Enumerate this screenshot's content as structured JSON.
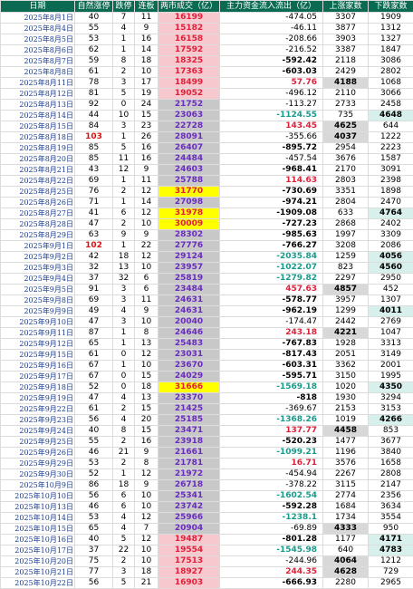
{
  "headers": [
    "日期",
    "自然涨停",
    "跌停",
    "连板",
    "两市成交（亿）",
    "主力资金流入流出（亿）",
    "上涨家数",
    "下跌家数"
  ],
  "rows": [
    [
      "2025年8月1日",
      "40",
      "7",
      "11",
      "16199",
      "-474.05",
      "3307",
      "1909"
    ],
    [
      "2025年8月4日",
      "55",
      "4",
      "9",
      "15182",
      "-46.11",
      "3877",
      "1312"
    ],
    [
      "2025年8月5日",
      "53",
      "1",
      "16",
      "16158",
      "-208.66",
      "3903",
      "1327"
    ],
    [
      "2025年8月6日",
      "62",
      "1",
      "14",
      "17592",
      "-216.52",
      "3387",
      "1847"
    ],
    [
      "2025年8月7日",
      "59",
      "8",
      "18",
      "18325",
      "-592.42",
      "2118",
      "3086"
    ],
    [
      "2025年8月8日",
      "61",
      "2",
      "10",
      "17363",
      "-603.03",
      "2429",
      "2802"
    ],
    [
      "2025年8月11日",
      "78",
      "3",
      "17",
      "18499",
      "57.76",
      "4188",
      "1068"
    ],
    [
      "2025年8月12日",
      "81",
      "5",
      "19",
      "19052",
      "-496.12",
      "2110",
      "3066"
    ],
    [
      "2025年8月13日",
      "92",
      "0",
      "24",
      "21752",
      "-113.27",
      "2733",
      "2458"
    ],
    [
      "2025年8月14日",
      "44",
      "10",
      "15",
      "23063",
      "-1124.55",
      "735",
      "4648"
    ],
    [
      "2025年8月15日",
      "84",
      "3",
      "23",
      "22728",
      "143.45",
      "4625",
      "644"
    ],
    [
      "2025年8月18日",
      "103",
      "1",
      "26",
      "28091",
      "-355.66",
      "4037",
      "1222"
    ],
    [
      "2025年8月19日",
      "85",
      "5",
      "16",
      "26407",
      "-895.72",
      "2954",
      "2223"
    ],
    [
      "2025年8月20日",
      "85",
      "11",
      "16",
      "24484",
      "-457.54",
      "3676",
      "1587"
    ],
    [
      "2025年8月21日",
      "43",
      "12",
      "9",
      "24603",
      "-968.41",
      "2170",
      "3091"
    ],
    [
      "2025年8月22日",
      "69",
      "1",
      "11",
      "25788",
      "114.63",
      "2803",
      "2398"
    ],
    [
      "2025年8月25日",
      "76",
      "2",
      "12",
      "31770",
      "-730.69",
      "3351",
      "1898"
    ],
    [
      "2025年8月26日",
      "71",
      "1",
      "14",
      "27098",
      "-974.21",
      "2804",
      "2470"
    ],
    [
      "2025年8月27日",
      "41",
      "6",
      "12",
      "31978",
      "-1909.08",
      "633",
      "4764"
    ],
    [
      "2025年8月28日",
      "47",
      "2",
      "10",
      "30009",
      "-727.23",
      "2868",
      "2402"
    ],
    [
      "2025年8月29日",
      "63",
      "9",
      "9",
      "28302",
      "-985.63",
      "1997",
      "3309"
    ],
    [
      "2025年9月1日",
      "102",
      "1",
      "22",
      "27776",
      "-766.27",
      "3208",
      "2086"
    ],
    [
      "2025年9月2日",
      "42",
      "18",
      "12",
      "29124",
      "-2035.84",
      "1259",
      "4056"
    ],
    [
      "2025年9月3日",
      "32",
      "13",
      "10",
      "23957",
      "-1022.07",
      "823",
      "4560"
    ],
    [
      "2025年9月4日",
      "37",
      "32",
      "6",
      "25819",
      "-1279.82",
      "2297",
      "2950"
    ],
    [
      "2025年9月5日",
      "91",
      "3",
      "6",
      "23484",
      "457.63",
      "4857",
      "452"
    ],
    [
      "2025年9月8日",
      "69",
      "3",
      "11",
      "24631",
      "-578.77",
      "3957",
      "1307"
    ],
    [
      "2025年9月9日",
      "49",
      "4",
      "9",
      "24631",
      "-962.19",
      "1299",
      "4011"
    ],
    [
      "2025年9月10日",
      "47",
      "3",
      "10",
      "20040",
      "-174.47",
      "2442",
      "2769"
    ],
    [
      "2025年9月11日",
      "87",
      "1",
      "8",
      "24646",
      "243.18",
      "4221",
      "1047"
    ],
    [
      "2025年9月12日",
      "65",
      "1",
      "13",
      "25483",
      "-767.83",
      "1928",
      "3313"
    ],
    [
      "2025年9月15日",
      "61",
      "0",
      "12",
      "23031",
      "-817.43",
      "2051",
      "3149"
    ],
    [
      "2025年9月16日",
      "67",
      "1",
      "10",
      "23670",
      "-603.31",
      "3362",
      "2001"
    ],
    [
      "2025年9月17日",
      "67",
      "0",
      "15",
      "24029",
      "-595.71",
      "3150",
      "1995"
    ],
    [
      "2025年9月18日",
      "52",
      "0",
      "18",
      "31666",
      "-1569.18",
      "1020",
      "4350"
    ],
    [
      "2025年9月19日",
      "47",
      "4",
      "13",
      "23370",
      "-818",
      "1930",
      "3294"
    ],
    [
      "2025年9月22日",
      "61",
      "2",
      "15",
      "21425",
      "-369.67",
      "2153",
      "3153"
    ],
    [
      "2025年9月23日",
      "56",
      "4",
      "20",
      "25185",
      "-1368.26",
      "1019",
      "4266"
    ],
    [
      "2025年9月24日",
      "40",
      "8",
      "15",
      "23471",
      "137.77",
      "4458",
      "853"
    ],
    [
      "2025年9月25日",
      "55",
      "2",
      "16",
      "23918",
      "-520.23",
      "1477",
      "3677"
    ],
    [
      "2025年9月26日",
      "46",
      "21",
      "9",
      "21661",
      "-1099.21",
      "1196",
      "3840"
    ],
    [
      "2025年9月29日",
      "53",
      "2",
      "8",
      "21781",
      "16.71",
      "3576",
      "1658"
    ],
    [
      "2025年9月30日",
      "52",
      "1",
      "12",
      "21972",
      "-454.94",
      "2267",
      "2808"
    ],
    [
      "2025年10月9日",
      "86",
      "18",
      "9",
      "26718",
      "-378.22",
      "3115",
      "2147"
    ],
    [
      "2025年10月10日",
      "56",
      "6",
      "10",
      "25341",
      "-1602.54",
      "2774",
      "2356"
    ],
    [
      "2025年10月13日",
      "46",
      "6",
      "10",
      "23742",
      "-592.28",
      "1684",
      "3634"
    ],
    [
      "2025年10月14日",
      "53",
      "4",
      "12",
      "25966",
      "-1238.1",
      "1734",
      "3554"
    ],
    [
      "2025年10月15日",
      "65",
      "4",
      "7",
      "20904",
      "-69.89",
      "4333",
      "950"
    ],
    [
      "2025年10月16日",
      "40",
      "5",
      "12",
      "19487",
      "-801.28",
      "1177",
      "4171"
    ],
    [
      "2025年10月17日",
      "37",
      "22",
      "10",
      "19554",
      "-1545.98",
      "640",
      "4783"
    ],
    [
      "2025年10月20日",
      "75",
      "2",
      "10",
      "17513",
      "-244.96",
      "4064",
      "1212"
    ],
    [
      "2025年10月21日",
      "77",
      "3",
      "18",
      "18927",
      "244.35",
      "4628",
      "729"
    ],
    [
      "2025年10月22日",
      "56",
      "5",
      "21",
      "16903",
      "-666.93",
      "2280",
      "2965"
    ]
  ],
  "styles": [
    [
      "",
      "",
      "up",
      "neg",
      "",
      ""
    ],
    [
      "",
      "",
      "up",
      "neg",
      "",
      ""
    ],
    [
      "",
      "",
      "up",
      "neg",
      "",
      ""
    ],
    [
      "",
      "",
      "up",
      "neg",
      "",
      ""
    ],
    [
      "",
      "",
      "up",
      "bneg",
      "",
      ""
    ],
    [
      "",
      "",
      "up",
      "bneg",
      "",
      ""
    ],
    [
      "",
      "",
      "up",
      "pos",
      "hl",
      ""
    ],
    [
      "",
      "",
      "up",
      "neg",
      "",
      ""
    ],
    [
      "",
      "",
      "down",
      "neg",
      "",
      ""
    ],
    [
      "",
      "",
      "down",
      "teal",
      "",
      "hlt"
    ],
    [
      "",
      "",
      "down",
      "pos",
      "hl",
      ""
    ],
    [
      "red",
      "",
      "down",
      "neg",
      "hl",
      ""
    ],
    [
      "",
      "",
      "down",
      "bneg",
      "",
      ""
    ],
    [
      "",
      "",
      "down",
      "neg",
      "",
      ""
    ],
    [
      "",
      "",
      "down",
      "bneg",
      "",
      ""
    ],
    [
      "",
      "",
      "down",
      "pos",
      "",
      ""
    ],
    [
      "",
      "",
      "yel",
      "bneg",
      "",
      ""
    ],
    [
      "",
      "",
      "down",
      "bneg",
      "",
      ""
    ],
    [
      "",
      "",
      "yel",
      "bneg",
      "",
      "hlt"
    ],
    [
      "",
      "",
      "yel",
      "bneg",
      "",
      ""
    ],
    [
      "",
      "",
      "down",
      "bneg",
      "",
      ""
    ],
    [
      "red",
      "",
      "down",
      "bneg",
      "",
      ""
    ],
    [
      "",
      "",
      "down",
      "teal",
      "",
      "hlt"
    ],
    [
      "",
      "",
      "down",
      "teal",
      "",
      "hlt"
    ],
    [
      "",
      "",
      "down",
      "teal",
      "",
      ""
    ],
    [
      "",
      "",
      "down",
      "pos",
      "hl",
      ""
    ],
    [
      "",
      "",
      "down",
      "bneg",
      "",
      ""
    ],
    [
      "",
      "",
      "down",
      "bneg",
      "",
      "hlt"
    ],
    [
      "",
      "",
      "down",
      "neg",
      "",
      ""
    ],
    [
      "",
      "",
      "down",
      "pos",
      "hl",
      ""
    ],
    [
      "",
      "",
      "down",
      "bneg",
      "",
      ""
    ],
    [
      "",
      "",
      "down",
      "bneg",
      "",
      ""
    ],
    [
      "",
      "",
      "down",
      "bneg",
      "",
      ""
    ],
    [
      "",
      "",
      "down",
      "bneg",
      "",
      ""
    ],
    [
      "",
      "",
      "yel",
      "teal",
      "",
      "hlt"
    ],
    [
      "",
      "",
      "down",
      "bneg",
      "",
      ""
    ],
    [
      "",
      "",
      "down",
      "neg",
      "",
      ""
    ],
    [
      "",
      "",
      "down",
      "teal",
      "",
      "hlt"
    ],
    [
      "",
      "",
      "down",
      "pos",
      "hl",
      ""
    ],
    [
      "",
      "",
      "down",
      "bneg",
      "",
      ""
    ],
    [
      "",
      "",
      "down",
      "teal",
      "",
      ""
    ],
    [
      "",
      "",
      "down",
      "pos",
      "",
      ""
    ],
    [
      "",
      "",
      "down",
      "neg",
      "",
      ""
    ],
    [
      "",
      "",
      "down",
      "neg",
      "",
      ""
    ],
    [
      "",
      "",
      "down",
      "teal",
      "",
      ""
    ],
    [
      "",
      "",
      "down",
      "bneg",
      "",
      ""
    ],
    [
      "",
      "",
      "down",
      "teal",
      "",
      ""
    ],
    [
      "",
      "",
      "down",
      "neg",
      "hl",
      ""
    ],
    [
      "",
      "",
      "up",
      "bneg",
      "",
      "hlt"
    ],
    [
      "",
      "",
      "up",
      "teal",
      "",
      "hlt"
    ],
    [
      "",
      "",
      "up",
      "neg",
      "hl",
      ""
    ],
    [
      "",
      "",
      "up",
      "pos",
      "hl",
      ""
    ],
    [
      "",
      "",
      "up",
      "bneg",
      "",
      ""
    ]
  ]
}
